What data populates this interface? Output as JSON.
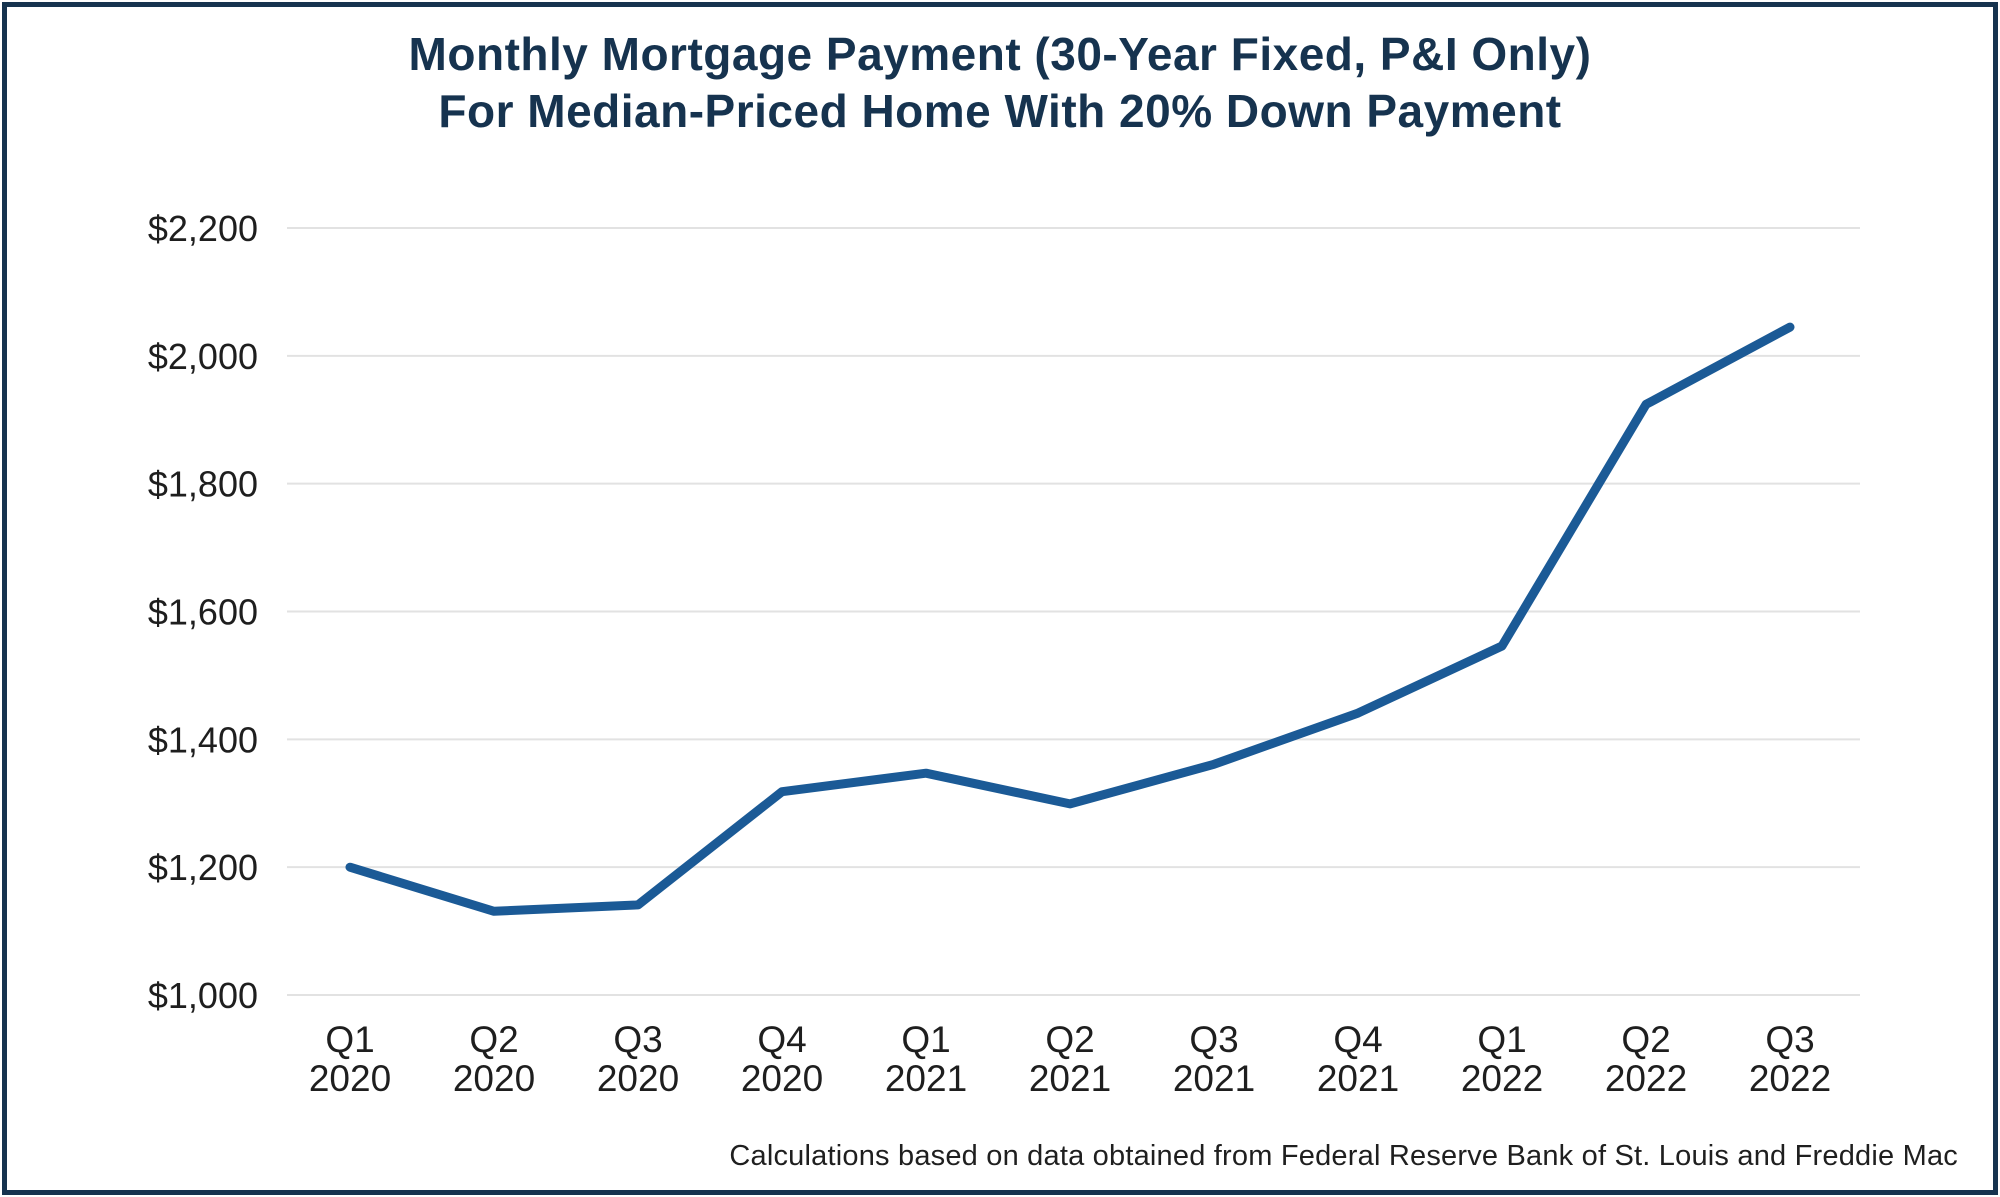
{
  "title": {
    "line1": "Monthly Mortgage Payment (30-Year Fixed, P&I Only)",
    "line2": "For Median-Priced Home With 20% Down Payment"
  },
  "footnote": "Calculations based on data obtained from Federal Reserve Bank of St. Louis and Freddie Mac",
  "colors": {
    "navy": "#16334f",
    "line": "#1b5a96",
    "gridline": "#e2e2e2",
    "tick_text": "#1e1e1e",
    "background": "#ffffff"
  },
  "chart_data": {
    "type": "line",
    "title": "Monthly Mortgage Payment (30-Year Fixed, P&I Only) For Median-Priced Home With 20% Down Payment",
    "categories": [
      "Q1 2020",
      "Q2 2020",
      "Q3 2020",
      "Q4 2020",
      "Q1 2021",
      "Q2 2021",
      "Q3 2021",
      "Q4 2021",
      "Q1 2022",
      "Q2 2022",
      "Q3 2022"
    ],
    "x_tick_lines": [
      [
        "Q1",
        "2020"
      ],
      [
        "Q2",
        "2020"
      ],
      [
        "Q3",
        "2020"
      ],
      [
        "Q4",
        "2020"
      ],
      [
        "Q1",
        "2021"
      ],
      [
        "Q2",
        "2021"
      ],
      [
        "Q3",
        "2021"
      ],
      [
        "Q4",
        "2021"
      ],
      [
        "Q1",
        "2022"
      ],
      [
        "Q2",
        "2022"
      ],
      [
        "Q3",
        "2022"
      ]
    ],
    "values": [
      1200,
      1131,
      1141,
      1318,
      1347,
      1299,
      1361,
      1441,
      1546,
      1924,
      2045
    ],
    "xlabel": "",
    "ylabel": "",
    "ylim": [
      1000,
      2200
    ],
    "y_ticks": [
      {
        "value": 1000,
        "label": "$1,000"
      },
      {
        "value": 1200,
        "label": "$1,200"
      },
      {
        "value": 1400,
        "label": "$1,400"
      },
      {
        "value": 1600,
        "label": "$1,600"
      },
      {
        "value": 1800,
        "label": "$1,800"
      },
      {
        "value": 2000,
        "label": "$2,000"
      },
      {
        "value": 2200,
        "label": "$2,200"
      }
    ],
    "grid": "horizontal",
    "legend": "none"
  }
}
